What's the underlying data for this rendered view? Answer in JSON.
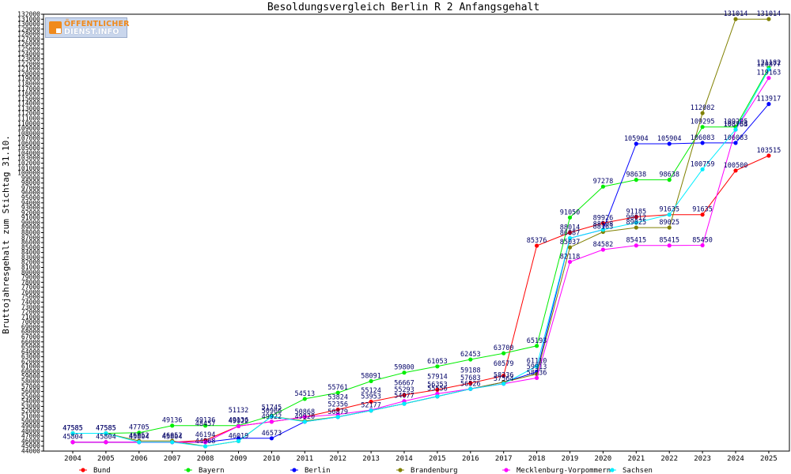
{
  "chart_data": {
    "type": "line",
    "title": "Besoldungsvergleich Berlin R 2 Anfangsgehalt",
    "xlabel": "",
    "ylabel": "Bruttojahresgehalt zum Stichtag 31.10.",
    "x": [
      "2004",
      "2005",
      "2006",
      "2007",
      "2008",
      "2009",
      "2010",
      "2011",
      "2012",
      "2013",
      "2014",
      "2015",
      "2016",
      "2017",
      "2018",
      "2019",
      "2020",
      "2021",
      "2022",
      "2023",
      "2024",
      "2025"
    ],
    "ylim": [
      44000,
      132000
    ],
    "ytick_step": 1000,
    "grid": false,
    "legend_position": "bottom",
    "series": [
      {
        "name": "Bund",
        "color": "#ff0000",
        "values": [
          45804,
          45804,
          45804,
          45804,
          46194,
          49022,
          49922,
          50868,
          52356,
          53953,
          55293,
          56353,
          57683,
          59188,
          85376,
          88014,
          89926,
          91185,
          91635,
          91635,
          100500,
          103515
        ]
      },
      {
        "name": "Bayern",
        "color": "#00ee00",
        "values": [
          47585,
          47585,
          47705,
          49136,
          49136,
          49136,
          51132,
          54513,
          55761,
          58091,
          59800,
          61053,
          62453,
          63700,
          65193,
          91050,
          97278,
          98638,
          98638,
          109295,
          109295,
          121182
        ]
      },
      {
        "name": "Berlin",
        "color": "#0000ff",
        "values": [
          45804,
          45804,
          45804,
          45804,
          45804,
          46573,
          46573,
          49920,
          50879,
          52177,
          53543,
          55016,
          56526,
          57900,
          59913,
          86887,
          88598,
          105904,
          105904,
          106083,
          106083,
          113917
        ]
      },
      {
        "name": "Brandenburg",
        "color": "#808000",
        "values": [
          47585,
          47585,
          46052,
          46052,
          44968,
          46019,
          50966,
          50071,
          50913,
          52177,
          53543,
          55016,
          56526,
          57900,
          59513,
          85037,
          88163,
          89025,
          89025,
          112082,
          131014,
          131014
        ]
      },
      {
        "name": "Mecklenburg-Vorpommern",
        "color": "#ff00ff",
        "values": [
          45804,
          45804,
          45804,
          45804,
          45804,
          49022,
          49922,
          50868,
          51379,
          52277,
          54077,
          55556,
          56526,
          57564,
          58736,
          82118,
          84582,
          85415,
          85415,
          85450,
          108754,
          119163
        ]
      },
      {
        "name": "Sachsen",
        "color": "#00eeff",
        "values": [
          47585,
          47585,
          45804,
          45804,
          44968,
          46019,
          50966,
          49922,
          50879,
          52177,
          53543,
          55016,
          56526,
          57564,
          61110,
          86887,
          88598,
          90012,
          91635,
          100759,
          108765,
          120877
        ]
      }
    ],
    "point_labels": [
      {
        "x": "2004",
        "y": 47585,
        "text": "47585"
      },
      {
        "x": "2004",
        "y": 47585,
        "text": "47585"
      },
      {
        "x": "2004",
        "y": 45804,
        "text": "45804"
      },
      {
        "x": "2005",
        "y": 47585,
        "text": "47585"
      },
      {
        "x": "2005",
        "y": 47585,
        "text": "47585"
      },
      {
        "x": "2005",
        "y": 45804,
        "text": "45804"
      },
      {
        "x": "2006",
        "y": 47705,
        "text": "47705"
      },
      {
        "x": "2006",
        "y": 46052,
        "text": "46052"
      },
      {
        "x": "2006",
        "y": 45804,
        "text": "45804"
      },
      {
        "x": "2007",
        "y": 49136,
        "text": "49136"
      },
      {
        "x": "2007",
        "y": 46052,
        "text": "46052"
      },
      {
        "x": "2007",
        "y": 45804,
        "text": "45804"
      },
      {
        "x": "2008",
        "y": 49136,
        "text": "49136"
      },
      {
        "x": "2008",
        "y": 48457,
        "text": "48457"
      },
      {
        "x": "2008",
        "y": 46194,
        "text": "46194"
      },
      {
        "x": "2008",
        "y": 44968,
        "text": "44968"
      },
      {
        "x": "2009",
        "y": 51132,
        "text": "51132"
      },
      {
        "x": "2009",
        "y": 49022,
        "text": "49022"
      },
      {
        "x": "2009",
        "y": 49136,
        "text": "49136"
      },
      {
        "x": "2009",
        "y": 46019,
        "text": "46019"
      },
      {
        "x": "2010",
        "y": 51745,
        "text": "51745"
      },
      {
        "x": "2010",
        "y": 50966,
        "text": "50966"
      },
      {
        "x": "2010",
        "y": 49922,
        "text": "49922"
      },
      {
        "x": "2010",
        "y": 46573,
        "text": "46573"
      },
      {
        "x": "2011",
        "y": 54513,
        "text": "54513"
      },
      {
        "x": "2011",
        "y": 50868,
        "text": "50868"
      },
      {
        "x": "2011",
        "y": 49920,
        "text": "49920"
      },
      {
        "x": "2012",
        "y": 55761,
        "text": "55761"
      },
      {
        "x": "2012",
        "y": 53824,
        "text": "53824"
      },
      {
        "x": "2012",
        "y": 52356,
        "text": "52356"
      },
      {
        "x": "2012",
        "y": 50879,
        "text": "50879"
      },
      {
        "x": "2013",
        "y": 58091,
        "text": "58091"
      },
      {
        "x": "2013",
        "y": 55124,
        "text": "55124"
      },
      {
        "x": "2013",
        "y": 53953,
        "text": "53953"
      },
      {
        "x": "2013",
        "y": 52177,
        "text": "52177"
      },
      {
        "x": "2014",
        "y": 59800,
        "text": "59800"
      },
      {
        "x": "2014",
        "y": 56667,
        "text": "56667"
      },
      {
        "x": "2014",
        "y": 55293,
        "text": "55293"
      },
      {
        "x": "2014",
        "y": 54077,
        "text": "54077"
      },
      {
        "x": "2015",
        "y": 61053,
        "text": "61053"
      },
      {
        "x": "2015",
        "y": 57914,
        "text": "57914"
      },
      {
        "x": "2015",
        "y": 56353,
        "text": "56353"
      },
      {
        "x": "2015",
        "y": 55556,
        "text": "55556"
      },
      {
        "x": "2016",
        "y": 62453,
        "text": "62453"
      },
      {
        "x": "2016",
        "y": 59188,
        "text": "59188"
      },
      {
        "x": "2016",
        "y": 57683,
        "text": "57683"
      },
      {
        "x": "2016",
        "y": 56526,
        "text": "56526"
      },
      {
        "x": "2017",
        "y": 63700,
        "text": "63700"
      },
      {
        "x": "2017",
        "y": 60579,
        "text": "60579"
      },
      {
        "x": "2017",
        "y": 58236,
        "text": "58236"
      },
      {
        "x": "2017",
        "y": 57564,
        "text": "57564"
      },
      {
        "x": "2018",
        "y": 85376,
        "text": "85376"
      },
      {
        "x": "2018",
        "y": 65193,
        "text": "65193"
      },
      {
        "x": "2018",
        "y": 61110,
        "text": "61110"
      },
      {
        "x": "2018",
        "y": 59913,
        "text": "59913"
      },
      {
        "x": "2018",
        "y": 58736,
        "text": "58736"
      },
      {
        "x": "2019",
        "y": 91050,
        "text": "91050"
      },
      {
        "x": "2019",
        "y": 88014,
        "text": "88014"
      },
      {
        "x": "2019",
        "y": 86887,
        "text": "86887"
      },
      {
        "x": "2019",
        "y": 85037,
        "text": "85037"
      },
      {
        "x": "2019",
        "y": 82118,
        "text": "82118"
      },
      {
        "x": "2020",
        "y": 97278,
        "text": "97278"
      },
      {
        "x": "2020",
        "y": 89926,
        "text": "89926"
      },
      {
        "x": "2020",
        "y": 88598,
        "text": "88598"
      },
      {
        "x": "2020",
        "y": 88163,
        "text": "88163"
      },
      {
        "x": "2020",
        "y": 84582,
        "text": "84582"
      },
      {
        "x": "2021",
        "y": 105904,
        "text": "105904"
      },
      {
        "x": "2021",
        "y": 98638,
        "text": "98638"
      },
      {
        "x": "2021",
        "y": 91185,
        "text": "91185"
      },
      {
        "x": "2021",
        "y": 90012,
        "text": "90012"
      },
      {
        "x": "2021",
        "y": 89025,
        "text": "89025"
      },
      {
        "x": "2021",
        "y": 85415,
        "text": "85415"
      },
      {
        "x": "2022",
        "y": 105904,
        "text": "105904"
      },
      {
        "x": "2022",
        "y": 98638,
        "text": "98638"
      },
      {
        "x": "2022",
        "y": 91635,
        "text": "91635"
      },
      {
        "x": "2022",
        "y": 89025,
        "text": "89025"
      },
      {
        "x": "2022",
        "y": 85415,
        "text": "85415"
      },
      {
        "x": "2023",
        "y": 112082,
        "text": "112082"
      },
      {
        "x": "2023",
        "y": 109295,
        "text": "109295"
      },
      {
        "x": "2023",
        "y": 106083,
        "text": "106083"
      },
      {
        "x": "2023",
        "y": 100759,
        "text": "100759"
      },
      {
        "x": "2023",
        "y": 91635,
        "text": "91635"
      },
      {
        "x": "2023",
        "y": 85450,
        "text": "85450"
      },
      {
        "x": "2024",
        "y": 131014,
        "text": "131014"
      },
      {
        "x": "2024",
        "y": 109295,
        "text": "109295"
      },
      {
        "x": "2024",
        "y": 108765,
        "text": "108765"
      },
      {
        "x": "2024",
        "y": 108754,
        "text": "108754"
      },
      {
        "x": "2024",
        "y": 106083,
        "text": "106083"
      },
      {
        "x": "2024",
        "y": 100500,
        "text": "100500"
      },
      {
        "x": "2025",
        "y": 131014,
        "text": "131014"
      },
      {
        "x": "2025",
        "y": 121182,
        "text": "121182"
      },
      {
        "x": "2025",
        "y": 120877,
        "text": "120877"
      },
      {
        "x": "2025",
        "y": 119163,
        "text": "119163"
      },
      {
        "x": "2025",
        "y": 113917,
        "text": "113917"
      },
      {
        "x": "2025",
        "y": 103515,
        "text": "103515"
      }
    ]
  },
  "logo": {
    "line1": "ÖFFENTLICHER",
    "line2": "DIENST.INFO"
  }
}
